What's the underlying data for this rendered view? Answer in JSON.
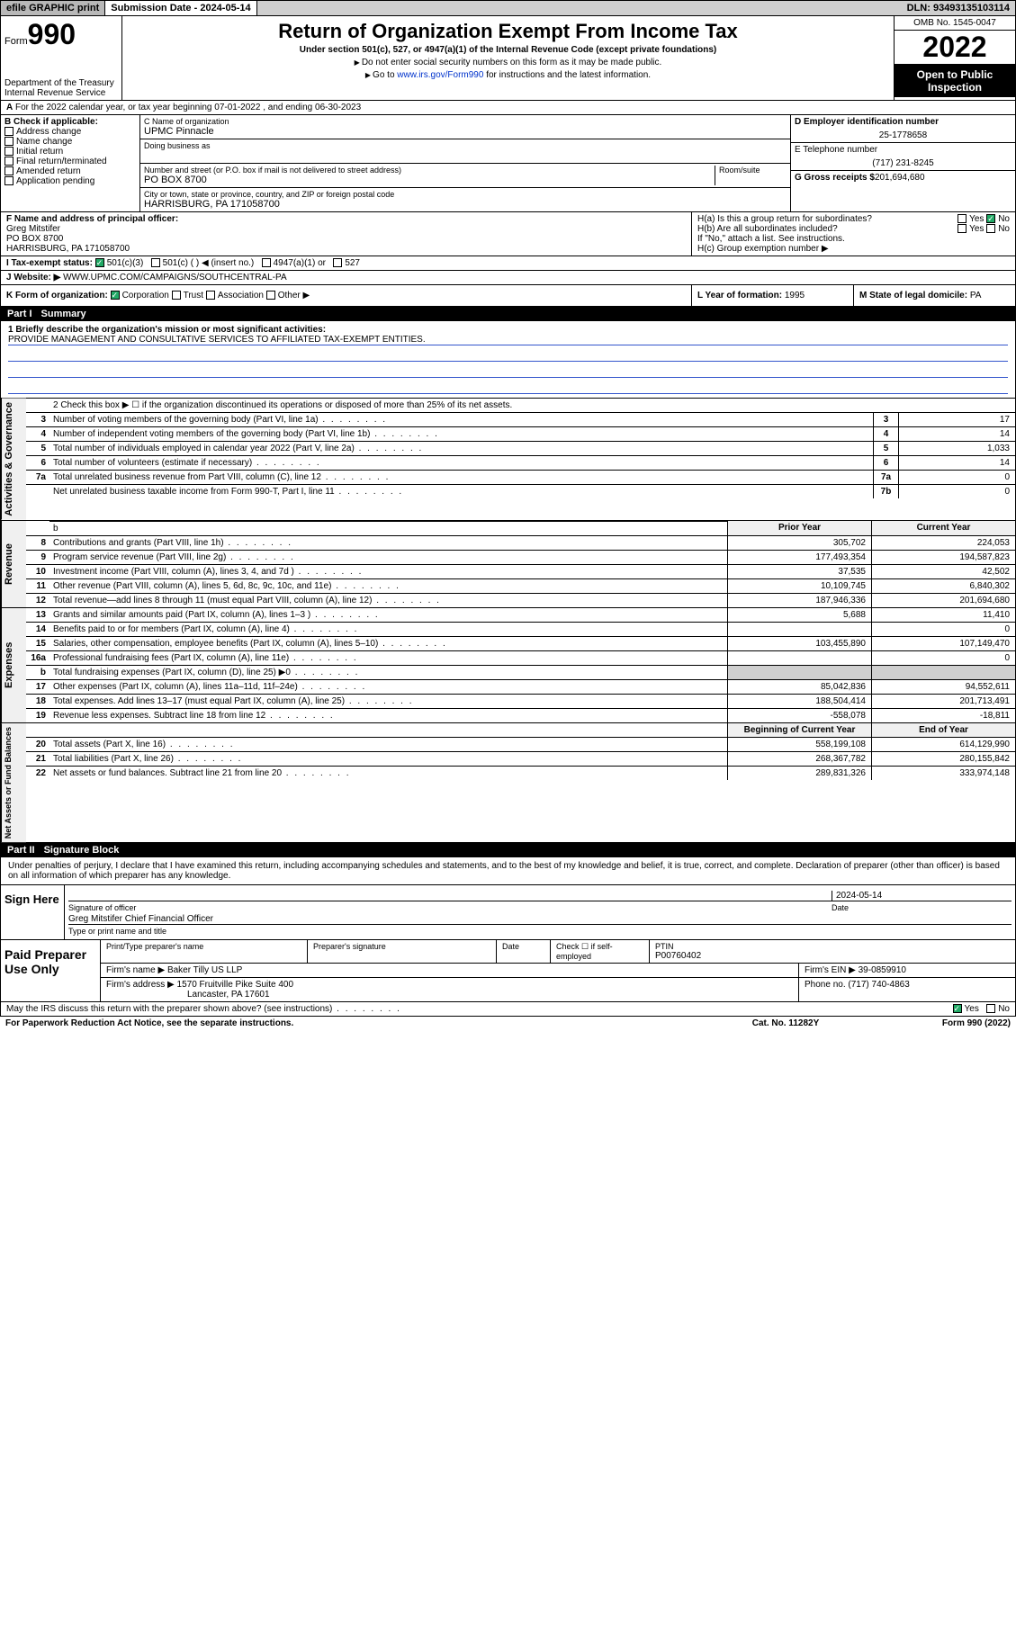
{
  "topbar": {
    "efile": "efile GRAPHIC print",
    "subdate_lbl": "Submission Date - ",
    "subdate": "2024-05-14",
    "dln_lbl": "DLN: ",
    "dln": "93493135103114"
  },
  "header": {
    "form_lbl": "Form",
    "form_num": "990",
    "dept": "Department of the Treasury",
    "irs": "Internal Revenue Service",
    "title": "Return of Organization Exempt From Income Tax",
    "sub": "Under section 501(c), 527, or 4947(a)(1) of the Internal Revenue Code (except private foundations)",
    "note1": "Do not enter social security numbers on this form as it may be made public.",
    "note2_pre": "Go to ",
    "note2_link": "www.irs.gov/Form990",
    "note2_post": " for instructions and the latest information.",
    "omb": "OMB No. 1545-0047",
    "year": "2022",
    "open": "Open to Public Inspection"
  },
  "rowA": {
    "text": "For the 2022 calendar year, or tax year beginning 07-01-2022   , and ending 06-30-2023"
  },
  "boxB": {
    "lbl": "B Check if applicable:",
    "opts": [
      "Address change",
      "Name change",
      "Initial return",
      "Final return/terminated",
      "Amended return",
      "Application pending"
    ]
  },
  "boxC": {
    "name_lbl": "C Name of organization",
    "name": "UPMC Pinnacle",
    "dba_lbl": "Doing business as",
    "addr_lbl": "Number and street (or P.O. box if mail is not delivered to street address)",
    "room_lbl": "Room/suite",
    "addr": "PO BOX 8700",
    "city_lbl": "City or town, state or province, country, and ZIP or foreign postal code",
    "city": "HARRISBURG, PA  171058700"
  },
  "boxD": {
    "lbl": "D Employer identification number",
    "val": "25-1778658"
  },
  "boxE": {
    "lbl": "E Telephone number",
    "val": "(717) 231-8245"
  },
  "boxG": {
    "lbl": "G Gross receipts $",
    "val": "201,694,680"
  },
  "boxF": {
    "lbl": "F  Name and address of principal officer:",
    "name": "Greg Mitstifer",
    "addr1": "PO BOX 8700",
    "addr2": "HARRISBURG, PA  171058700"
  },
  "boxH": {
    "a": "H(a)  Is this a group return for subordinates?",
    "b": "H(b)  Are all subordinates included?",
    "note": "If \"No,\" attach a list. See instructions.",
    "c": "H(c)  Group exemption number ▶"
  },
  "rowI": {
    "lbl": "I   Tax-exempt status:",
    "o1": "501(c)(3)",
    "o2": "501(c) (  ) ◀ (insert no.)",
    "o3": "4947(a)(1) or",
    "o4": "527"
  },
  "rowJ": {
    "lbl": "J    Website: ▶",
    "val": "WWW.UPMC.COM/CAMPAIGNS/SOUTHCENTRAL-PA"
  },
  "rowK": {
    "lbl": "K Form of organization:",
    "opts": [
      "Corporation",
      "Trust",
      "Association",
      "Other ▶"
    ],
    "L_lbl": "L Year of formation:",
    "L_val": "1995",
    "M_lbl": "M State of legal domicile:",
    "M_val": "PA"
  },
  "part1": {
    "hdr": "Part I",
    "title": "Summary"
  },
  "mission": {
    "lbl": "1  Briefly describe the organization's mission or most significant activities:",
    "text": "PROVIDE MANAGEMENT AND CONSULTATIVE SERVICES TO AFFILIATED TAX-EXEMPT ENTITIES."
  },
  "line2": "2   Check this box ▶ ☐  if the organization discontinued its operations or disposed of more than 25% of its net assets.",
  "gov_rows": [
    {
      "n": "3",
      "d": "Number of voting members of the governing body (Part VI, line 1a)",
      "b": "3",
      "v": "17"
    },
    {
      "n": "4",
      "d": "Number of independent voting members of the governing body (Part VI, line 1b)",
      "b": "4",
      "v": "14"
    },
    {
      "n": "5",
      "d": "Total number of individuals employed in calendar year 2022 (Part V, line 2a)",
      "b": "5",
      "v": "1,033"
    },
    {
      "n": "6",
      "d": "Total number of volunteers (estimate if necessary)",
      "b": "6",
      "v": "14"
    },
    {
      "n": "7a",
      "d": "Total unrelated business revenue from Part VIII, column (C), line 12",
      "b": "7a",
      "v": "0"
    },
    {
      "n": "",
      "d": "Net unrelated business taxable income from Form 990-T, Part I, line 11",
      "b": "7b",
      "v": "0"
    }
  ],
  "rev_hdr": {
    "prior": "Prior Year",
    "curr": "Current Year"
  },
  "rev_rows": [
    {
      "n": "8",
      "d": "Contributions and grants (Part VIII, line 1h)",
      "p": "305,702",
      "c": "224,053"
    },
    {
      "n": "9",
      "d": "Program service revenue (Part VIII, line 2g)",
      "p": "177,493,354",
      "c": "194,587,823"
    },
    {
      "n": "10",
      "d": "Investment income (Part VIII, column (A), lines 3, 4, and 7d )",
      "p": "37,535",
      "c": "42,502"
    },
    {
      "n": "11",
      "d": "Other revenue (Part VIII, column (A), lines 5, 6d, 8c, 9c, 10c, and 11e)",
      "p": "10,109,745",
      "c": "6,840,302"
    },
    {
      "n": "12",
      "d": "Total revenue—add lines 8 through 11 (must equal Part VIII, column (A), line 12)",
      "p": "187,946,336",
      "c": "201,694,680"
    }
  ],
  "exp_rows": [
    {
      "n": "13",
      "d": "Grants and similar amounts paid (Part IX, column (A), lines 1–3 )",
      "p": "5,688",
      "c": "11,410"
    },
    {
      "n": "14",
      "d": "Benefits paid to or for members (Part IX, column (A), line 4)",
      "p": "",
      "c": "0"
    },
    {
      "n": "15",
      "d": "Salaries, other compensation, employee benefits (Part IX, column (A), lines 5–10)",
      "p": "103,455,890",
      "c": "107,149,470"
    },
    {
      "n": "16a",
      "d": "Professional fundraising fees (Part IX, column (A), line 11e)",
      "p": "",
      "c": "0"
    },
    {
      "n": "b",
      "d": "Total fundraising expenses (Part IX, column (D), line 25) ▶0",
      "p": "shade",
      "c": "shade"
    },
    {
      "n": "17",
      "d": "Other expenses (Part IX, column (A), lines 11a–11d, 11f–24e)",
      "p": "85,042,836",
      "c": "94,552,611"
    },
    {
      "n": "18",
      "d": "Total expenses. Add lines 13–17 (must equal Part IX, column (A), line 25)",
      "p": "188,504,414",
      "c": "201,713,491"
    },
    {
      "n": "19",
      "d": "Revenue less expenses. Subtract line 18 from line 12",
      "p": "-558,078",
      "c": "-18,811"
    }
  ],
  "na_hdr": {
    "b": "Beginning of Current Year",
    "e": "End of Year"
  },
  "na_rows": [
    {
      "n": "20",
      "d": "Total assets (Part X, line 16)",
      "p": "558,199,108",
      "c": "614,129,990"
    },
    {
      "n": "21",
      "d": "Total liabilities (Part X, line 26)",
      "p": "268,367,782",
      "c": "280,155,842"
    },
    {
      "n": "22",
      "d": "Net assets or fund balances. Subtract line 21 from line 20",
      "p": "289,831,326",
      "c": "333,974,148"
    }
  ],
  "part2": {
    "hdr": "Part II",
    "title": "Signature Block"
  },
  "sig": {
    "decl": "Under penalties of perjury, I declare that I have examined this return, including accompanying schedules and statements, and to the best of my knowledge and belief, it is true, correct, and complete. Declaration of preparer (other than officer) is based on all information of which preparer has any knowledge.",
    "here": "Sign Here",
    "sigoff": "Signature of officer",
    "date": "Date",
    "datev": "2024-05-14",
    "name": "Greg Mitstifer  Chief Financial Officer",
    "typ": "Type or print name and title"
  },
  "prep": {
    "lbl": "Paid Preparer Use Only",
    "h1": "Print/Type preparer's name",
    "h2": "Preparer's signature",
    "h3": "Date",
    "h4": "Check ☐ if self-employed",
    "h5l": "PTIN",
    "h5": "P00760402",
    "firm_lbl": "Firm's name   ▶",
    "firm": "Baker Tilly US LLP",
    "ein_lbl": "Firm's EIN ▶",
    "ein": "39-0859910",
    "addr_lbl": "Firm's address ▶",
    "addr": "1570 Fruitville Pike Suite 400",
    "addr2": "Lancaster, PA  17601",
    "ph_lbl": "Phone no.",
    "ph": "(717) 740-4863"
  },
  "foot": {
    "q": "May the IRS discuss this return with the preparer shown above? (see instructions)",
    "yes": "Yes",
    "no": "No"
  },
  "bottom": {
    "l": "For Paperwork Reduction Act Notice, see the separate instructions.",
    "m": "Cat. No. 11282Y",
    "r": "Form 990 (2022)"
  },
  "sidelabels": {
    "gov": "Activities & Governance",
    "rev": "Revenue",
    "exp": "Expenses",
    "na": "Net Assets or Fund Balances"
  }
}
